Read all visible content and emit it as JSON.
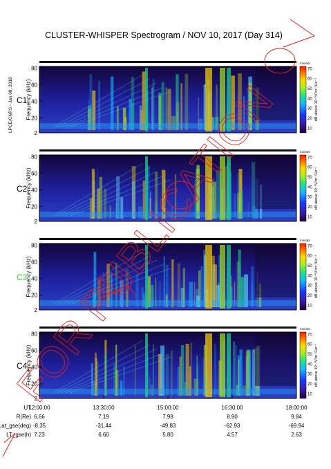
{
  "title": "CLUSTER-WHISPER Spectrogram / NOV 10, 2017 (Day 314)",
  "side_note": "LPCE/CNRS - Jan 08, 2018",
  "watermark": "FOR PUBLICATION",
  "chart_data": {
    "type": "heatmap",
    "panels": [
      {
        "name": "C1",
        "name_color": "#000000"
      },
      {
        "name": "C2",
        "name_color": "#000000"
      },
      {
        "name": "C3",
        "name_color": "#33cc33"
      },
      {
        "name": "C4",
        "name_color": "#000000"
      }
    ],
    "ylabel": "Frequency (kHz)",
    "yticks": [
      "2",
      "20",
      "40",
      "60",
      "80"
    ],
    "ylim": [
      2,
      82
    ],
    "xlim": [
      "12:00:00",
      "18:00:00"
    ],
    "colorbar": {
      "label": "dB above 10⁻⁸V²m⁻²Hz⁻¹",
      "header": "monitor",
      "ticks": [
        "10",
        "20",
        "30",
        "40",
        "50",
        "60",
        "70"
      ],
      "range": [
        5,
        72
      ]
    },
    "orbit_table": {
      "rows": [
        {
          "label": "UT",
          "values": [
            "12:00:00",
            "13:30:00",
            "15:00:00",
            "16:30:00",
            "18:00:00"
          ]
        },
        {
          "label": "R(Re)",
          "values": [
            "6.66",
            "7.19",
            "7.98",
            "8.90",
            "9.84"
          ]
        },
        {
          "label": "Lat_gse(deg)",
          "values": [
            "-8.35",
            "-31.44",
            "-49.83",
            "-62.93",
            "-69.94"
          ]
        },
        {
          "label": "LT_gse(h)",
          "values": [
            "7.23",
            "6.60",
            "5.80",
            "4.57",
            "2.63"
          ]
        }
      ]
    }
  }
}
